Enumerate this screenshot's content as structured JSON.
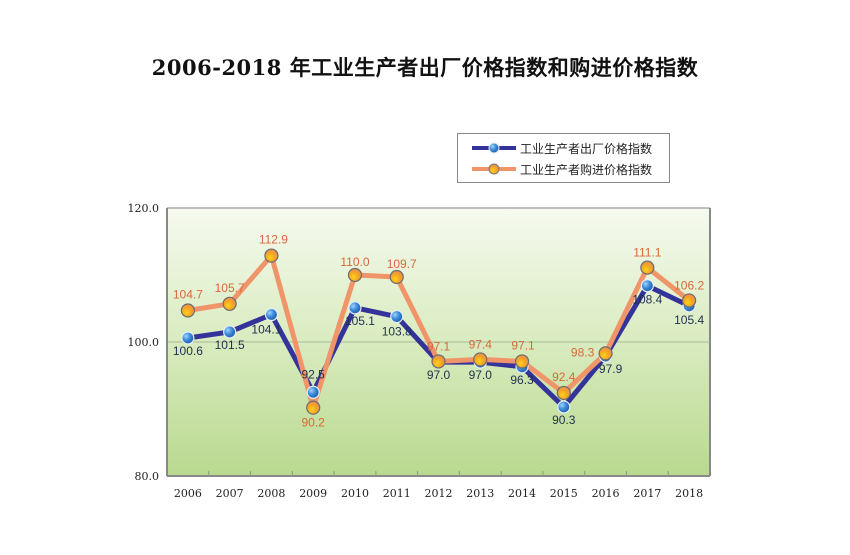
{
  "chart_data": {
    "type": "line",
    "title": "2006-2018 年工业生产者出厂价格指数和购进价格指数",
    "xlabel": "",
    "ylabel": "",
    "categories": [
      "2006",
      "2007",
      "2008",
      "2009",
      "2010",
      "2011",
      "2012",
      "2013",
      "2014",
      "2015",
      "2016",
      "2017",
      "2018"
    ],
    "ylim": [
      80,
      120
    ],
    "yticks": [
      "80.0",
      "100.0",
      "120.0"
    ],
    "reference_line": 100,
    "grid": false,
    "legend_position": "top-right",
    "series": [
      {
        "name": "工业生产者出厂价格指数",
        "color": "#333399",
        "marker_color": "#3a8ad8",
        "label_color": "#1f2f4f",
        "values": [
          100.6,
          101.5,
          104.1,
          92.5,
          105.1,
          103.8,
          97.0,
          97.0,
          96.3,
          90.3,
          97.9,
          108.4,
          105.4
        ],
        "labels": [
          "100.6",
          "101.5",
          "104.1",
          "92.5",
          "105.1",
          "103.8",
          "97.0",
          "97.0",
          "96.3",
          "90.3",
          "97.9",
          "108.4",
          "105.4"
        ]
      },
      {
        "name": "工业生产者购进价格指数",
        "color": "#f0956a",
        "marker_color": "#f5a623",
        "label_color": "#d9683a",
        "values": [
          104.7,
          105.7,
          112.9,
          90.2,
          110.0,
          109.7,
          97.1,
          97.4,
          97.1,
          92.4,
          98.3,
          111.1,
          106.2
        ],
        "labels": [
          "104.7",
          "105.7",
          "112.9",
          "90.2",
          "110.0",
          "109.7",
          "97.1",
          "97.4",
          "97.1",
          "92.4",
          "98.3",
          "111.1",
          "106.2"
        ]
      }
    ]
  },
  "legend": {
    "items": [
      {
        "label": "工业生产者出厂价格指数"
      },
      {
        "label": "工业生产者购进价格指数"
      }
    ]
  }
}
